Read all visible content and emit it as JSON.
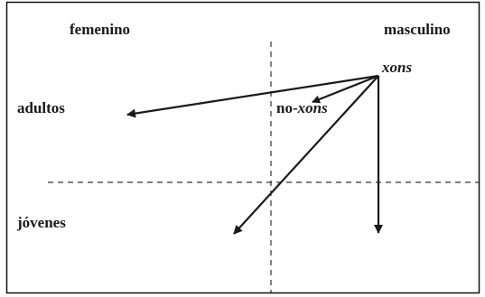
{
  "labels": {
    "femenino": "femenino",
    "masculino": "masculino",
    "adultos": "adultos",
    "jovenes": "jóvenes",
    "xons": "xons",
    "no_prefix": "no-",
    "no_xons_word": "xons"
  },
  "colors": {
    "ink": "#1a1a1a",
    "frame": "#111111",
    "axis": "#333333",
    "background": "#ffffff"
  }
}
